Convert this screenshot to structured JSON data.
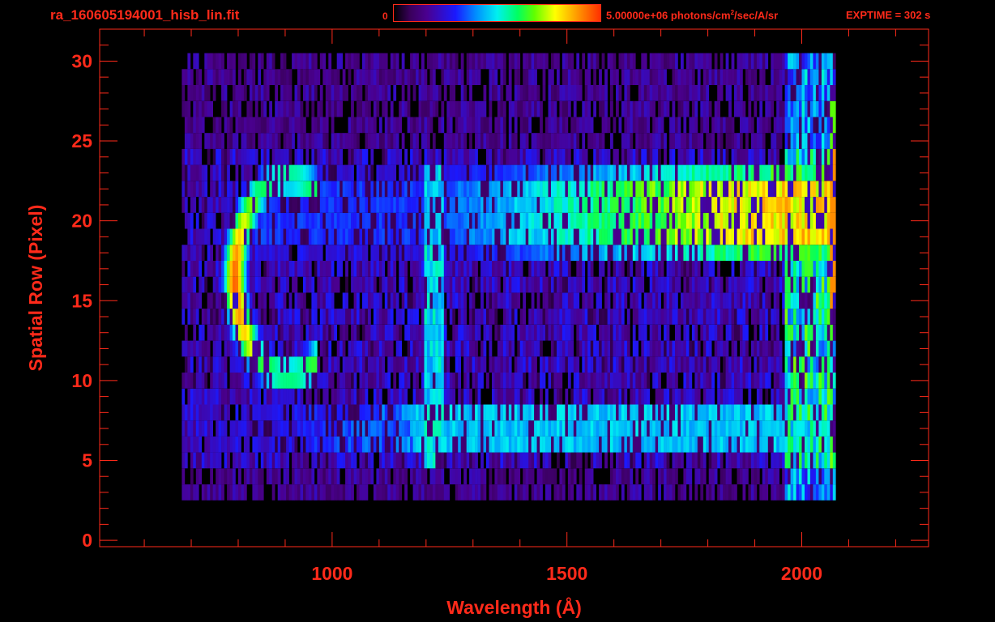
{
  "header": {
    "file_title": "ra_160605194001_hisb_lin.fit",
    "colorbar_min": "0",
    "colorbar_max": "5.00000e+06 photons/cm",
    "colorbar_max_sup": "2",
    "colorbar_max_tail": "/sec/A/sr",
    "exptime": "EXPTIME = 302 s"
  },
  "colors": {
    "axis": "#ff2a1a",
    "background": "#000000"
  },
  "chart_data": {
    "type": "heatmap",
    "title": "ra_160605194001_hisb_lin.fit",
    "xlabel": "Wavelength (Å)",
    "ylabel": "Spatial Row (Pixel)",
    "xlim": [
      505,
      2270
    ],
    "ylim": [
      -0.4,
      32
    ],
    "x_ticks": [
      1000,
      1500,
      2000
    ],
    "y_ticks": [
      0,
      5,
      10,
      15,
      20,
      25,
      30
    ],
    "colorbar": {
      "min": 0,
      "max": 5000000,
      "units": "photons/cm^2/sec/A/sr",
      "colormap": "rainbow"
    },
    "data_extent_x": [
      680,
      2070
    ],
    "data_extent_y": [
      3,
      30
    ],
    "features": [
      {
        "name": "curved arc",
        "x": [
          775,
          980
        ],
        "y": [
          10,
          23
        ],
        "peak_level": 0.95
      },
      {
        "name": "upper band",
        "x": [
          830,
          2070
        ],
        "y": [
          18,
          23
        ],
        "peak_level": 0.82
      },
      {
        "name": "lower band",
        "x": [
          700,
          2060
        ],
        "y": [
          5.5,
          9
        ],
        "peak_level": 0.5
      },
      {
        "name": "line near 1216",
        "x": [
          1190,
          1240
        ],
        "y": [
          5,
          23
        ],
        "peak_level": 0.55
      }
    ]
  }
}
